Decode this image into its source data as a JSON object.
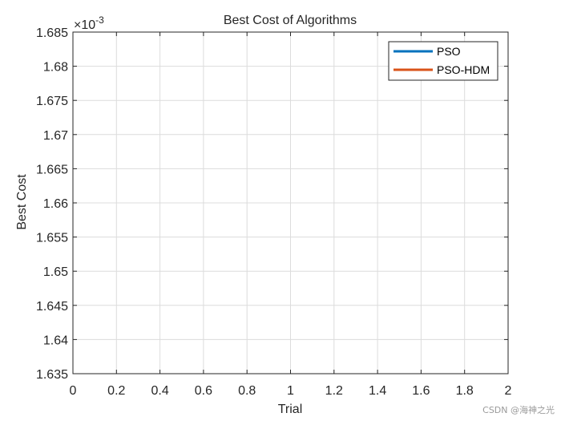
{
  "chart_data": {
    "type": "line",
    "title": "Best Cost of Algorithms",
    "xlabel": "Trial",
    "ylabel": "Best Cost",
    "exponent_prefix": "×10",
    "exponent_power": "-3",
    "xlim": [
      0,
      2
    ],
    "ylim": [
      0.001635,
      0.001685
    ],
    "x_ticks": [
      "0",
      "0.2",
      "0.4",
      "0.6",
      "0.8",
      "1",
      "1.2",
      "1.4",
      "1.6",
      "1.8",
      "2"
    ],
    "y_ticks": [
      "1.635",
      "1.64",
      "1.645",
      "1.65",
      "1.655",
      "1.66",
      "1.665",
      "1.67",
      "1.675",
      "1.68",
      "1.685"
    ],
    "grid": true,
    "legend_position": "top-right",
    "series": [
      {
        "name": "PSO",
        "color": "#0072BD",
        "x": [],
        "y": []
      },
      {
        "name": "PSO-HDM",
        "color": "#D95319",
        "x": [],
        "y": []
      }
    ]
  },
  "watermark": "CSDN @海神之光"
}
